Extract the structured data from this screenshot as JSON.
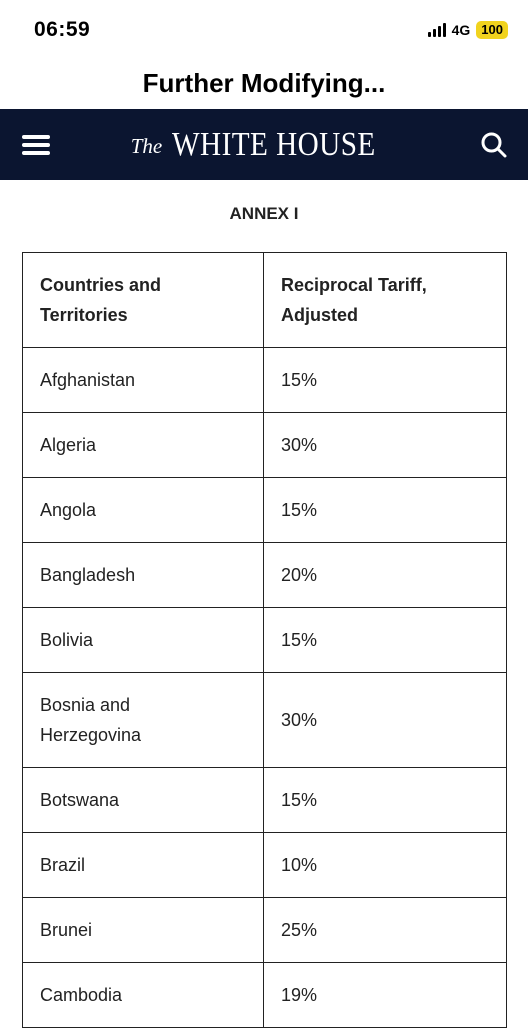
{
  "status_bar": {
    "time": "06:59",
    "network": "4G",
    "battery": "100",
    "signal_icon": "signal-bars-icon"
  },
  "page_title": "Further Modifying...",
  "header": {
    "logo_prefix": "The",
    "logo_main": "WHITE HOUSE",
    "menu_icon": "hamburger-menu-icon",
    "search_icon": "search-icon",
    "background_color": "#0b1530"
  },
  "annex": {
    "heading": "ANNEX I",
    "table": {
      "headers": [
        [
          "Countries and",
          "Territories"
        ],
        [
          "Reciprocal Tariff,",
          "Adjusted"
        ]
      ],
      "rows": [
        {
          "country": [
            "Afghanistan"
          ],
          "tariff": "15%"
        },
        {
          "country": [
            "Algeria"
          ],
          "tariff": "30%"
        },
        {
          "country": [
            "Angola"
          ],
          "tariff": "15%"
        },
        {
          "country": [
            "Bangladesh"
          ],
          "tariff": "20%"
        },
        {
          "country": [
            "Bolivia"
          ],
          "tariff": "15%"
        },
        {
          "country": [
            "Bosnia and",
            "Herzegovina"
          ],
          "tariff": "30%"
        },
        {
          "country": [
            "Botswana"
          ],
          "tariff": "15%"
        },
        {
          "country": [
            "Brazil"
          ],
          "tariff": "10%"
        },
        {
          "country": [
            "Brunei"
          ],
          "tariff": "25%"
        },
        {
          "country": [
            "Cambodia"
          ],
          "tariff": "19%"
        }
      ]
    }
  }
}
